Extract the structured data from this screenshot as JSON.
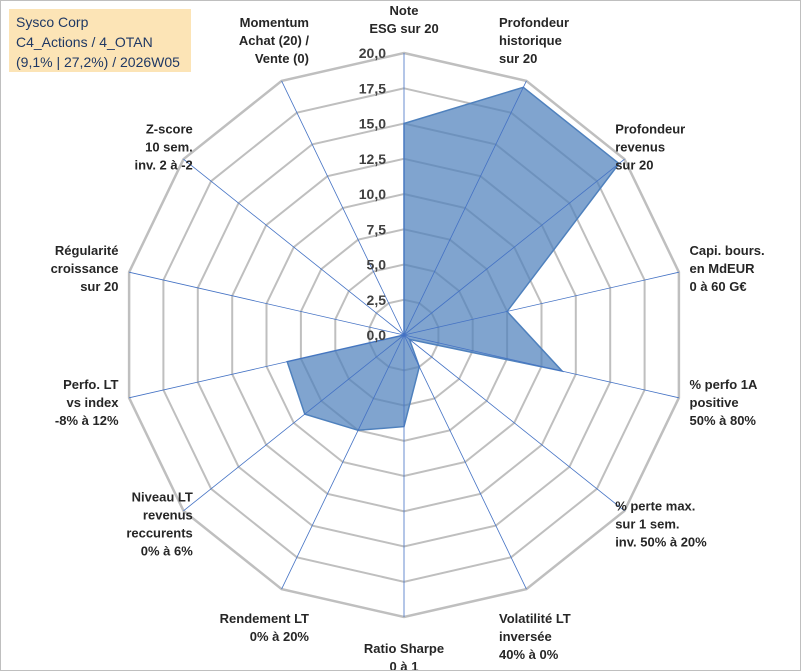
{
  "title_box": {
    "line1": "Sysco Corp",
    "line2": "C4_Actions / 4_OTAN",
    "line3": "(9,1% | 27,2%) / 2026W05"
  },
  "chart_data": {
    "type": "radar",
    "title": "Sysco Corp",
    "subtitle": "C4_Actions / 4_OTAN (9,1% | 27,2%) / 2026W05",
    "rmin": 0,
    "rmax": 20,
    "grid": true,
    "tick_values": [
      0,
      2.5,
      5,
      7.5,
      10,
      12.5,
      15,
      17.5,
      20
    ],
    "tick_labels": [
      "0,0",
      "2,5",
      "5,0",
      "7,5",
      "10,0",
      "12,5",
      "15,0",
      "17,5",
      "20,0"
    ],
    "categories": [
      [
        "Note",
        "ESG sur 20"
      ],
      [
        "Profondeur",
        "historique",
        "sur 20"
      ],
      [
        "Profondeur",
        "revenus",
        "sur 20"
      ],
      [
        "Capi. bours.",
        "en MdEUR",
        "0 à 60 G€"
      ],
      [
        "% perfo 1A",
        "positive",
        "50% à 80%"
      ],
      [
        "% perte max.",
        "sur 1 sem.",
        "inv. 50% à 20%"
      ],
      [
        "Volatilité LT",
        "inversée",
        "40% à 0%"
      ],
      [
        "Ratio Sharpe",
        "0 à 1"
      ],
      [
        "Rendement LT",
        "0% à 20%"
      ],
      [
        "Niveau LT",
        "revenus",
        "reccurents",
        "0% à 6%"
      ],
      [
        "Perfo. LT",
        "vs index",
        "-8% à 12%"
      ],
      [
        "Régularité",
        "croissance",
        "sur 20"
      ],
      [
        "Z-score",
        "10 sem.",
        "inv. 2 à -2"
      ],
      [
        "Momentum",
        "Achat (20) /",
        "Vente (0)"
      ]
    ],
    "series": [
      {
        "name": "Sysco Corp",
        "values": [
          15.0,
          19.5,
          19.5,
          7.5,
          11.5,
          0.5,
          2.5,
          6.5,
          7.5,
          9.0,
          8.5,
          0.0,
          0.0,
          0.0
        ],
        "color": "#4f81bd"
      }
    ],
    "colors": {
      "fill": "#4f81bd",
      "stroke": "#4f81bd",
      "grid": "#bfbfbf",
      "axis": "#4472c4"
    }
  }
}
